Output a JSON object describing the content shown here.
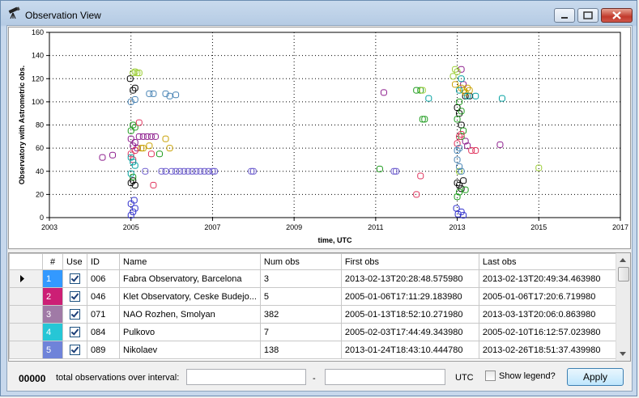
{
  "window": {
    "title": "Observation View"
  },
  "chart_data": {
    "type": "scatter",
    "xlabel": "time, UTC",
    "ylabel": "Observatory with Astrometric obs.",
    "xlim": [
      2003,
      2017
    ],
    "ylim": [
      0,
      160
    ],
    "xticks": [
      "2003",
      "2005",
      "2007",
      "2009",
      "2011",
      "2013",
      "2015",
      "2017"
    ],
    "yticks": [
      "0",
      "20",
      "40",
      "60",
      "80",
      "100",
      "120",
      "140",
      "160"
    ],
    "grid": true,
    "legend": "none",
    "series": [
      {
        "color": "#2b2bcc",
        "points": [
          [
            2005.0,
            2
          ],
          [
            2005.05,
            5
          ],
          [
            2005.1,
            8
          ],
          [
            2005.0,
            12
          ],
          [
            2005.08,
            15
          ],
          [
            2013.02,
            3
          ],
          [
            2013.1,
            5
          ],
          [
            2013.15,
            2
          ],
          [
            2012.98,
            8
          ]
        ]
      },
      {
        "color": "#6a5acd",
        "points": [
          [
            2005.75,
            40
          ],
          [
            2005.85,
            40
          ],
          [
            2006.0,
            40
          ],
          [
            2006.1,
            40
          ],
          [
            2006.2,
            40
          ],
          [
            2006.3,
            40
          ],
          [
            2006.4,
            40
          ],
          [
            2006.5,
            40
          ],
          [
            2006.6,
            40
          ],
          [
            2006.7,
            40
          ],
          [
            2006.8,
            40
          ],
          [
            2006.9,
            40
          ],
          [
            2007.0,
            40
          ],
          [
            2007.05,
            40
          ],
          [
            2007.95,
            40
          ],
          [
            2008.0,
            40
          ],
          [
            2011.45,
            40
          ],
          [
            2011.5,
            40
          ],
          [
            2005.35,
            40
          ]
        ]
      },
      {
        "color": "#000000",
        "points": [
          [
            2005.0,
            30
          ],
          [
            2005.05,
            32
          ],
          [
            2005.1,
            28
          ],
          [
            2005.05,
            110
          ],
          [
            2005.1,
            112
          ],
          [
            2004.98,
            120
          ],
          [
            2013.0,
            30
          ],
          [
            2013.05,
            28
          ],
          [
            2013.1,
            25
          ],
          [
            2013.15,
            32
          ],
          [
            2013.2,
            105
          ],
          [
            2013.3,
            105
          ],
          [
            2013.0,
            95
          ],
          [
            2013.05,
            90
          ],
          [
            2013.1,
            80
          ]
        ]
      },
      {
        "color": "#8b1a8b",
        "points": [
          [
            2005.0,
            68
          ],
          [
            2005.05,
            62
          ],
          [
            2005.1,
            65
          ],
          [
            2005.15,
            60
          ],
          [
            2005.2,
            70
          ],
          [
            2005.3,
            70
          ],
          [
            2005.4,
            70
          ],
          [
            2005.5,
            70
          ],
          [
            2005.6,
            70
          ],
          [
            2013.1,
            128
          ],
          [
            2013.15,
            115
          ],
          [
            2013.25,
            62
          ],
          [
            2013.2,
            66
          ],
          [
            2011.2,
            108
          ],
          [
            2014.05,
            63
          ],
          [
            2004.3,
            52
          ],
          [
            2004.55,
            54
          ]
        ]
      },
      {
        "color": "#1a9a1a",
        "points": [
          [
            2005.05,
            80
          ],
          [
            2005.1,
            78
          ],
          [
            2005.0,
            75
          ],
          [
            2005.05,
            35
          ],
          [
            2005.7,
            55
          ],
          [
            2012.15,
            85
          ],
          [
            2012.2,
            85
          ],
          [
            2012.0,
            110
          ],
          [
            2012.1,
            110
          ],
          [
            2013.0,
            18
          ],
          [
            2013.05,
            22
          ],
          [
            2013.2,
            24
          ],
          [
            2013.1,
            70
          ],
          [
            2013.15,
            75
          ],
          [
            2013.0,
            85
          ],
          [
            2013.05,
            100
          ],
          [
            2013.1,
            92
          ],
          [
            2011.1,
            42
          ]
        ]
      },
      {
        "color": "#c8a000",
        "points": [
          [
            2005.25,
            60
          ],
          [
            2005.3,
            60
          ],
          [
            2005.45,
            62
          ],
          [
            2005.85,
            68
          ],
          [
            2005.95,
            60
          ],
          [
            2013.1,
            112
          ],
          [
            2013.15,
            110
          ],
          [
            2013.2,
            108
          ],
          [
            2013.25,
            112
          ],
          [
            2013.3,
            110
          ],
          [
            2012.95,
            115
          ]
        ]
      },
      {
        "color": "#e0305a",
        "points": [
          [
            2005.0,
            55
          ],
          [
            2005.05,
            50
          ],
          [
            2005.1,
            58
          ],
          [
            2005.2,
            82
          ],
          [
            2005.5,
            55
          ],
          [
            2005.55,
            28
          ],
          [
            2013.05,
            70
          ],
          [
            2013.1,
            72
          ],
          [
            2013.0,
            64
          ],
          [
            2013.35,
            58
          ],
          [
            2013.45,
            58
          ],
          [
            2012.1,
            36
          ],
          [
            2012.0,
            20
          ]
        ]
      },
      {
        "color": "#00a0a0",
        "points": [
          [
            2005.0,
            52
          ],
          [
            2005.05,
            48
          ],
          [
            2005.1,
            45
          ],
          [
            2005.0,
            38
          ],
          [
            2013.05,
            110
          ],
          [
            2013.1,
            120
          ],
          [
            2013.25,
            105
          ],
          [
            2013.45,
            105
          ],
          [
            2014.1,
            103
          ],
          [
            2012.3,
            103
          ]
        ]
      },
      {
        "color": "#9acd32",
        "points": [
          [
            2005.05,
            125
          ],
          [
            2005.1,
            126
          ],
          [
            2005.15,
            125
          ],
          [
            2005.2,
            125
          ],
          [
            2013.0,
            126
          ],
          [
            2012.95,
            128
          ],
          [
            2012.9,
            122
          ],
          [
            2012.15,
            110
          ],
          [
            2015.0,
            43
          ],
          [
            2013.05,
            40
          ]
        ]
      },
      {
        "color": "#4682b4",
        "points": [
          [
            2005.45,
            107
          ],
          [
            2005.55,
            107
          ],
          [
            2005.85,
            107
          ],
          [
            2005.95,
            105
          ],
          [
            2006.1,
            106
          ],
          [
            2005.0,
            100
          ],
          [
            2005.1,
            102
          ],
          [
            2013.0,
            58
          ],
          [
            2013.05,
            44
          ],
          [
            2013.1,
            40
          ],
          [
            2013.0,
            50
          ],
          [
            2013.05,
            60
          ]
        ]
      }
    ]
  },
  "table": {
    "columns": [
      "#",
      "Use",
      "ID",
      "Name",
      "Num obs",
      "First obs",
      "Last obs"
    ],
    "rows": [
      {
        "num": "1",
        "color": "#3399ff",
        "id": "006",
        "name": "Fabra Observatory, Barcelona",
        "num_obs": "3",
        "first": "2013-02-13T20:28:48.575980",
        "last": "2013-02-13T20:49:34.463980"
      },
      {
        "num": "2",
        "color": "#cc1f75",
        "id": "046",
        "name": "Klet Observatory, Ceske Budejo...",
        "num_obs": "5",
        "first": "2005-01-06T17:11:29.183980",
        "last": "2005-01-06T17:20:6.719980"
      },
      {
        "num": "3",
        "color": "#a07aa6",
        "id": "071",
        "name": "NAO Rozhen, Smolyan",
        "num_obs": "382",
        "first": "2005-01-13T18:52:10.271980",
        "last": "2013-03-13T20:06:0.863980"
      },
      {
        "num": "4",
        "color": "#26c6d6",
        "id": "084",
        "name": "Pulkovo",
        "num_obs": "7",
        "first": "2005-02-03T17:44:49.343980",
        "last": "2005-02-10T16:12:57.023980"
      },
      {
        "num": "5",
        "color": "#6f83d9",
        "id": "089",
        "name": "Nikolaev",
        "num_obs": "138",
        "first": "2013-01-24T18:43:10.444780",
        "last": "2013-02-26T18:51:37.439980"
      }
    ]
  },
  "footer": {
    "count": "00000",
    "count_label": "total observations over interval:",
    "from_value": "",
    "dash": "-",
    "to_value": "",
    "utc_label": "UTC",
    "legend_label": "Show legend?",
    "apply_label": "Apply"
  },
  "icons": {
    "title": "telescope-icon",
    "minimize": "minimize-icon",
    "maximize": "maximize-icon",
    "close": "close-icon"
  }
}
